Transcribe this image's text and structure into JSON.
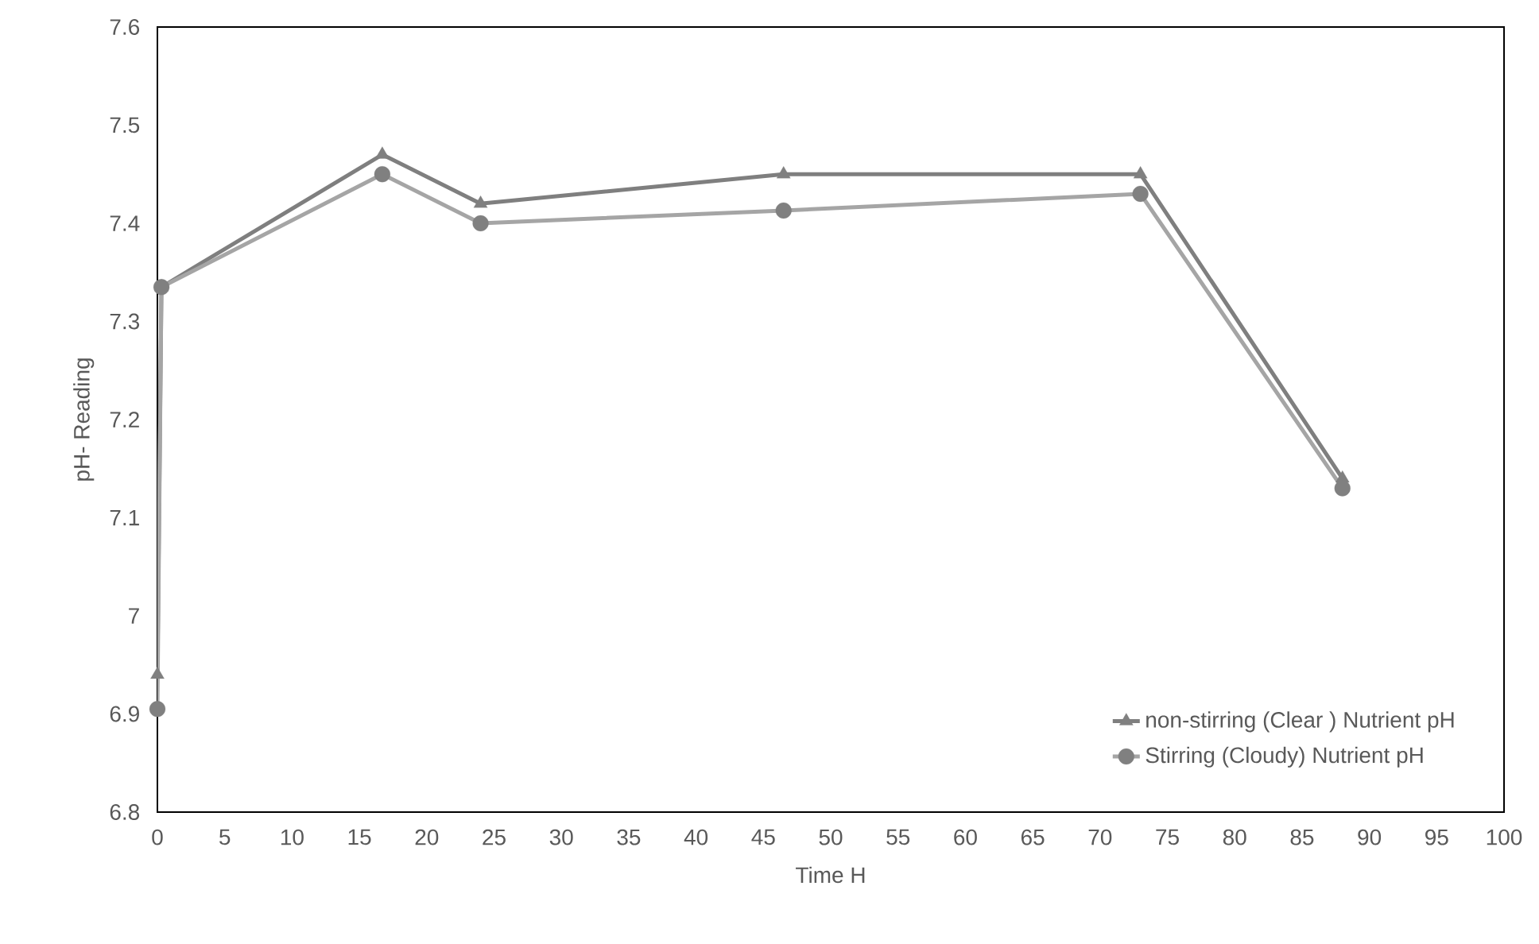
{
  "chart_data": {
    "type": "line",
    "xlabel": "Time H",
    "ylabel": "pH- Reading",
    "xlim": [
      0,
      100
    ],
    "xticks": [
      0,
      5,
      10,
      15,
      20,
      25,
      30,
      35,
      40,
      45,
      50,
      55,
      60,
      65,
      70,
      75,
      80,
      85,
      90,
      95,
      100
    ],
    "ylim": [
      6.8,
      7.6
    ],
    "yticks": [
      6.8,
      6.9,
      7,
      7.1,
      7.2,
      7.3,
      7.4,
      7.5,
      7.6
    ],
    "grid": false,
    "legend": "bottom right",
    "line_style": "solid",
    "series": [
      {
        "name": "non-stirring (Clear ) Nutrient pH",
        "color": "#7f7f7f",
        "marker": "triangle",
        "x": [
          0,
          0.3,
          16.7,
          24,
          46.5,
          73,
          88
        ],
        "values": [
          6.94,
          7.335,
          7.47,
          7.42,
          7.45,
          7.45,
          7.14
        ]
      },
      {
        "name": "Stirring (Cloudy) Nutrient pH",
        "color": "#a5a5a5",
        "marker": "circle",
        "x": [
          0,
          0.3,
          16.7,
          24,
          46.5,
          73,
          88
        ],
        "values": [
          6.905,
          7.335,
          7.45,
          7.4,
          7.413,
          7.43,
          7.13
        ]
      }
    ]
  }
}
